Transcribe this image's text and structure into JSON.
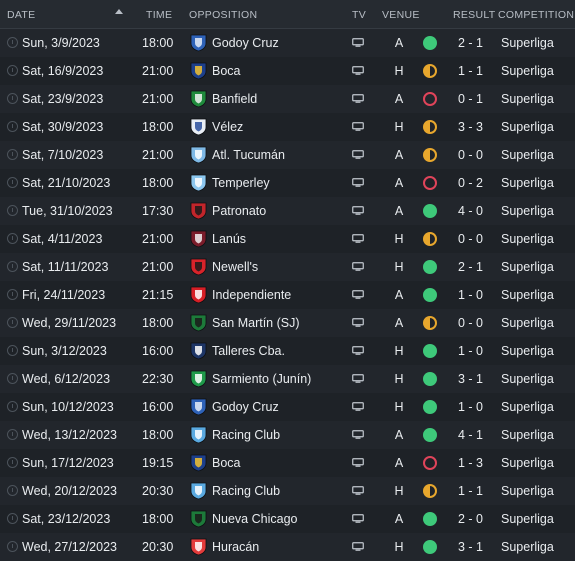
{
  "headers": {
    "date": "DATE",
    "time": "TIME",
    "opposition": "OPPOSITION",
    "tv": "TV",
    "venue": "VENUE",
    "result": "RESULT",
    "competition": "COMPETITION"
  },
  "colors": {
    "win": "#3ec97a",
    "draw": "#e8a72d",
    "loss": "#e0445a"
  },
  "rows": [
    {
      "date": "Sun, 3/9/2023",
      "time": "18:00",
      "opponent": "Godoy Cruz",
      "crest": [
        "#2e62b8",
        "#e6eef8"
      ],
      "venue": "A",
      "outcome": "win",
      "score": "2 - 1",
      "competition": "Superliga"
    },
    {
      "date": "Sat, 16/9/2023",
      "time": "21:00",
      "opponent": "Boca",
      "crest": [
        "#1d3f8a",
        "#f2c230"
      ],
      "venue": "H",
      "outcome": "draw",
      "score": "1 - 1",
      "competition": "Superliga"
    },
    {
      "date": "Sat, 23/9/2023",
      "time": "21:00",
      "opponent": "Banfield",
      "crest": [
        "#1f8a3c",
        "#f2f2f2"
      ],
      "venue": "A",
      "outcome": "loss",
      "score": "0 - 1",
      "competition": "Superliga"
    },
    {
      "date": "Sat, 30/9/2023",
      "time": "18:00",
      "opponent": "Vélez",
      "crest": [
        "#e9eef5",
        "#2a4f9c"
      ],
      "venue": "H",
      "outcome": "draw",
      "score": "3 - 3",
      "competition": "Superliga"
    },
    {
      "date": "Sat, 7/10/2023",
      "time": "21:00",
      "opponent": "Atl. Tucumán",
      "crest": [
        "#7fb9e6",
        "#ffffff"
      ],
      "venue": "A",
      "outcome": "draw",
      "score": "0 - 0",
      "competition": "Superliga"
    },
    {
      "date": "Sat, 21/10/2023",
      "time": "18:00",
      "opponent": "Temperley",
      "crest": [
        "#8cc7ef",
        "#ffffff"
      ],
      "venue": "A",
      "outcome": "loss",
      "score": "0 - 2",
      "competition": "Superliga"
    },
    {
      "date": "Tue, 31/10/2023",
      "time": "17:30",
      "opponent": "Patronato",
      "crest": [
        "#c2252b",
        "#1a1a1a"
      ],
      "venue": "A",
      "outcome": "win",
      "score": "4 - 0",
      "competition": "Superliga"
    },
    {
      "date": "Sat, 4/11/2023",
      "time": "21:00",
      "opponent": "Lanús",
      "crest": [
        "#7a1c2a",
        "#f0f0f0"
      ],
      "venue": "H",
      "outcome": "draw",
      "score": "0 - 0",
      "competition": "Superliga"
    },
    {
      "date": "Sat, 11/11/2023",
      "time": "21:00",
      "opponent": "Newell's",
      "crest": [
        "#d8232a",
        "#1a1a1a"
      ],
      "venue": "H",
      "outcome": "win",
      "score": "2 - 1",
      "competition": "Superliga"
    },
    {
      "date": "Fri, 24/11/2023",
      "time": "21:15",
      "opponent": "Independiente",
      "crest": [
        "#d61f26",
        "#ffffff"
      ],
      "venue": "A",
      "outcome": "win",
      "score": "1 - 0",
      "competition": "Superliga"
    },
    {
      "date": "Wed, 29/11/2023",
      "time": "18:00",
      "opponent": "San Martín (SJ)",
      "crest": [
        "#1d7a3a",
        "#1a1a1a"
      ],
      "venue": "A",
      "outcome": "draw",
      "score": "0 - 0",
      "competition": "Superliga"
    },
    {
      "date": "Sun, 3/12/2023",
      "time": "16:00",
      "opponent": "Talleres Cba.",
      "crest": [
        "#1d3566",
        "#ffffff"
      ],
      "venue": "H",
      "outcome": "win",
      "score": "1 - 0",
      "competition": "Superliga"
    },
    {
      "date": "Wed, 6/12/2023",
      "time": "22:30",
      "opponent": "Sarmiento (Junín)",
      "crest": [
        "#1f9a4a",
        "#ffffff"
      ],
      "venue": "H",
      "outcome": "win",
      "score": "3 - 1",
      "competition": "Superliga"
    },
    {
      "date": "Sun, 10/12/2023",
      "time": "16:00",
      "opponent": "Godoy Cruz",
      "crest": [
        "#2e62b8",
        "#e6eef8"
      ],
      "venue": "H",
      "outcome": "win",
      "score": "1 - 0",
      "competition": "Superliga"
    },
    {
      "date": "Wed, 13/12/2023",
      "time": "18:00",
      "opponent": "Racing Club",
      "crest": [
        "#5aa9e0",
        "#ffffff"
      ],
      "venue": "A",
      "outcome": "win",
      "score": "4 - 1",
      "competition": "Superliga"
    },
    {
      "date": "Sun, 17/12/2023",
      "time": "19:15",
      "opponent": "Boca",
      "crest": [
        "#1d3f8a",
        "#f2c230"
      ],
      "venue": "A",
      "outcome": "loss",
      "score": "1 - 3",
      "competition": "Superliga"
    },
    {
      "date": "Wed, 20/12/2023",
      "time": "20:30",
      "opponent": "Racing Club",
      "crest": [
        "#5aa9e0",
        "#ffffff"
      ],
      "venue": "H",
      "outcome": "draw",
      "score": "1 - 1",
      "competition": "Superliga"
    },
    {
      "date": "Sat, 23/12/2023",
      "time": "18:00",
      "opponent": "Nueva Chicago",
      "crest": [
        "#1d7a3a",
        "#1a1a1a"
      ],
      "venue": "A",
      "outcome": "win",
      "score": "2 - 0",
      "competition": "Superliga"
    },
    {
      "date": "Wed, 27/12/2023",
      "time": "20:30",
      "opponent": "Huracán",
      "crest": [
        "#e33b3b",
        "#ffffff"
      ],
      "venue": "H",
      "outcome": "win",
      "score": "3 - 1",
      "competition": "Superliga"
    }
  ]
}
